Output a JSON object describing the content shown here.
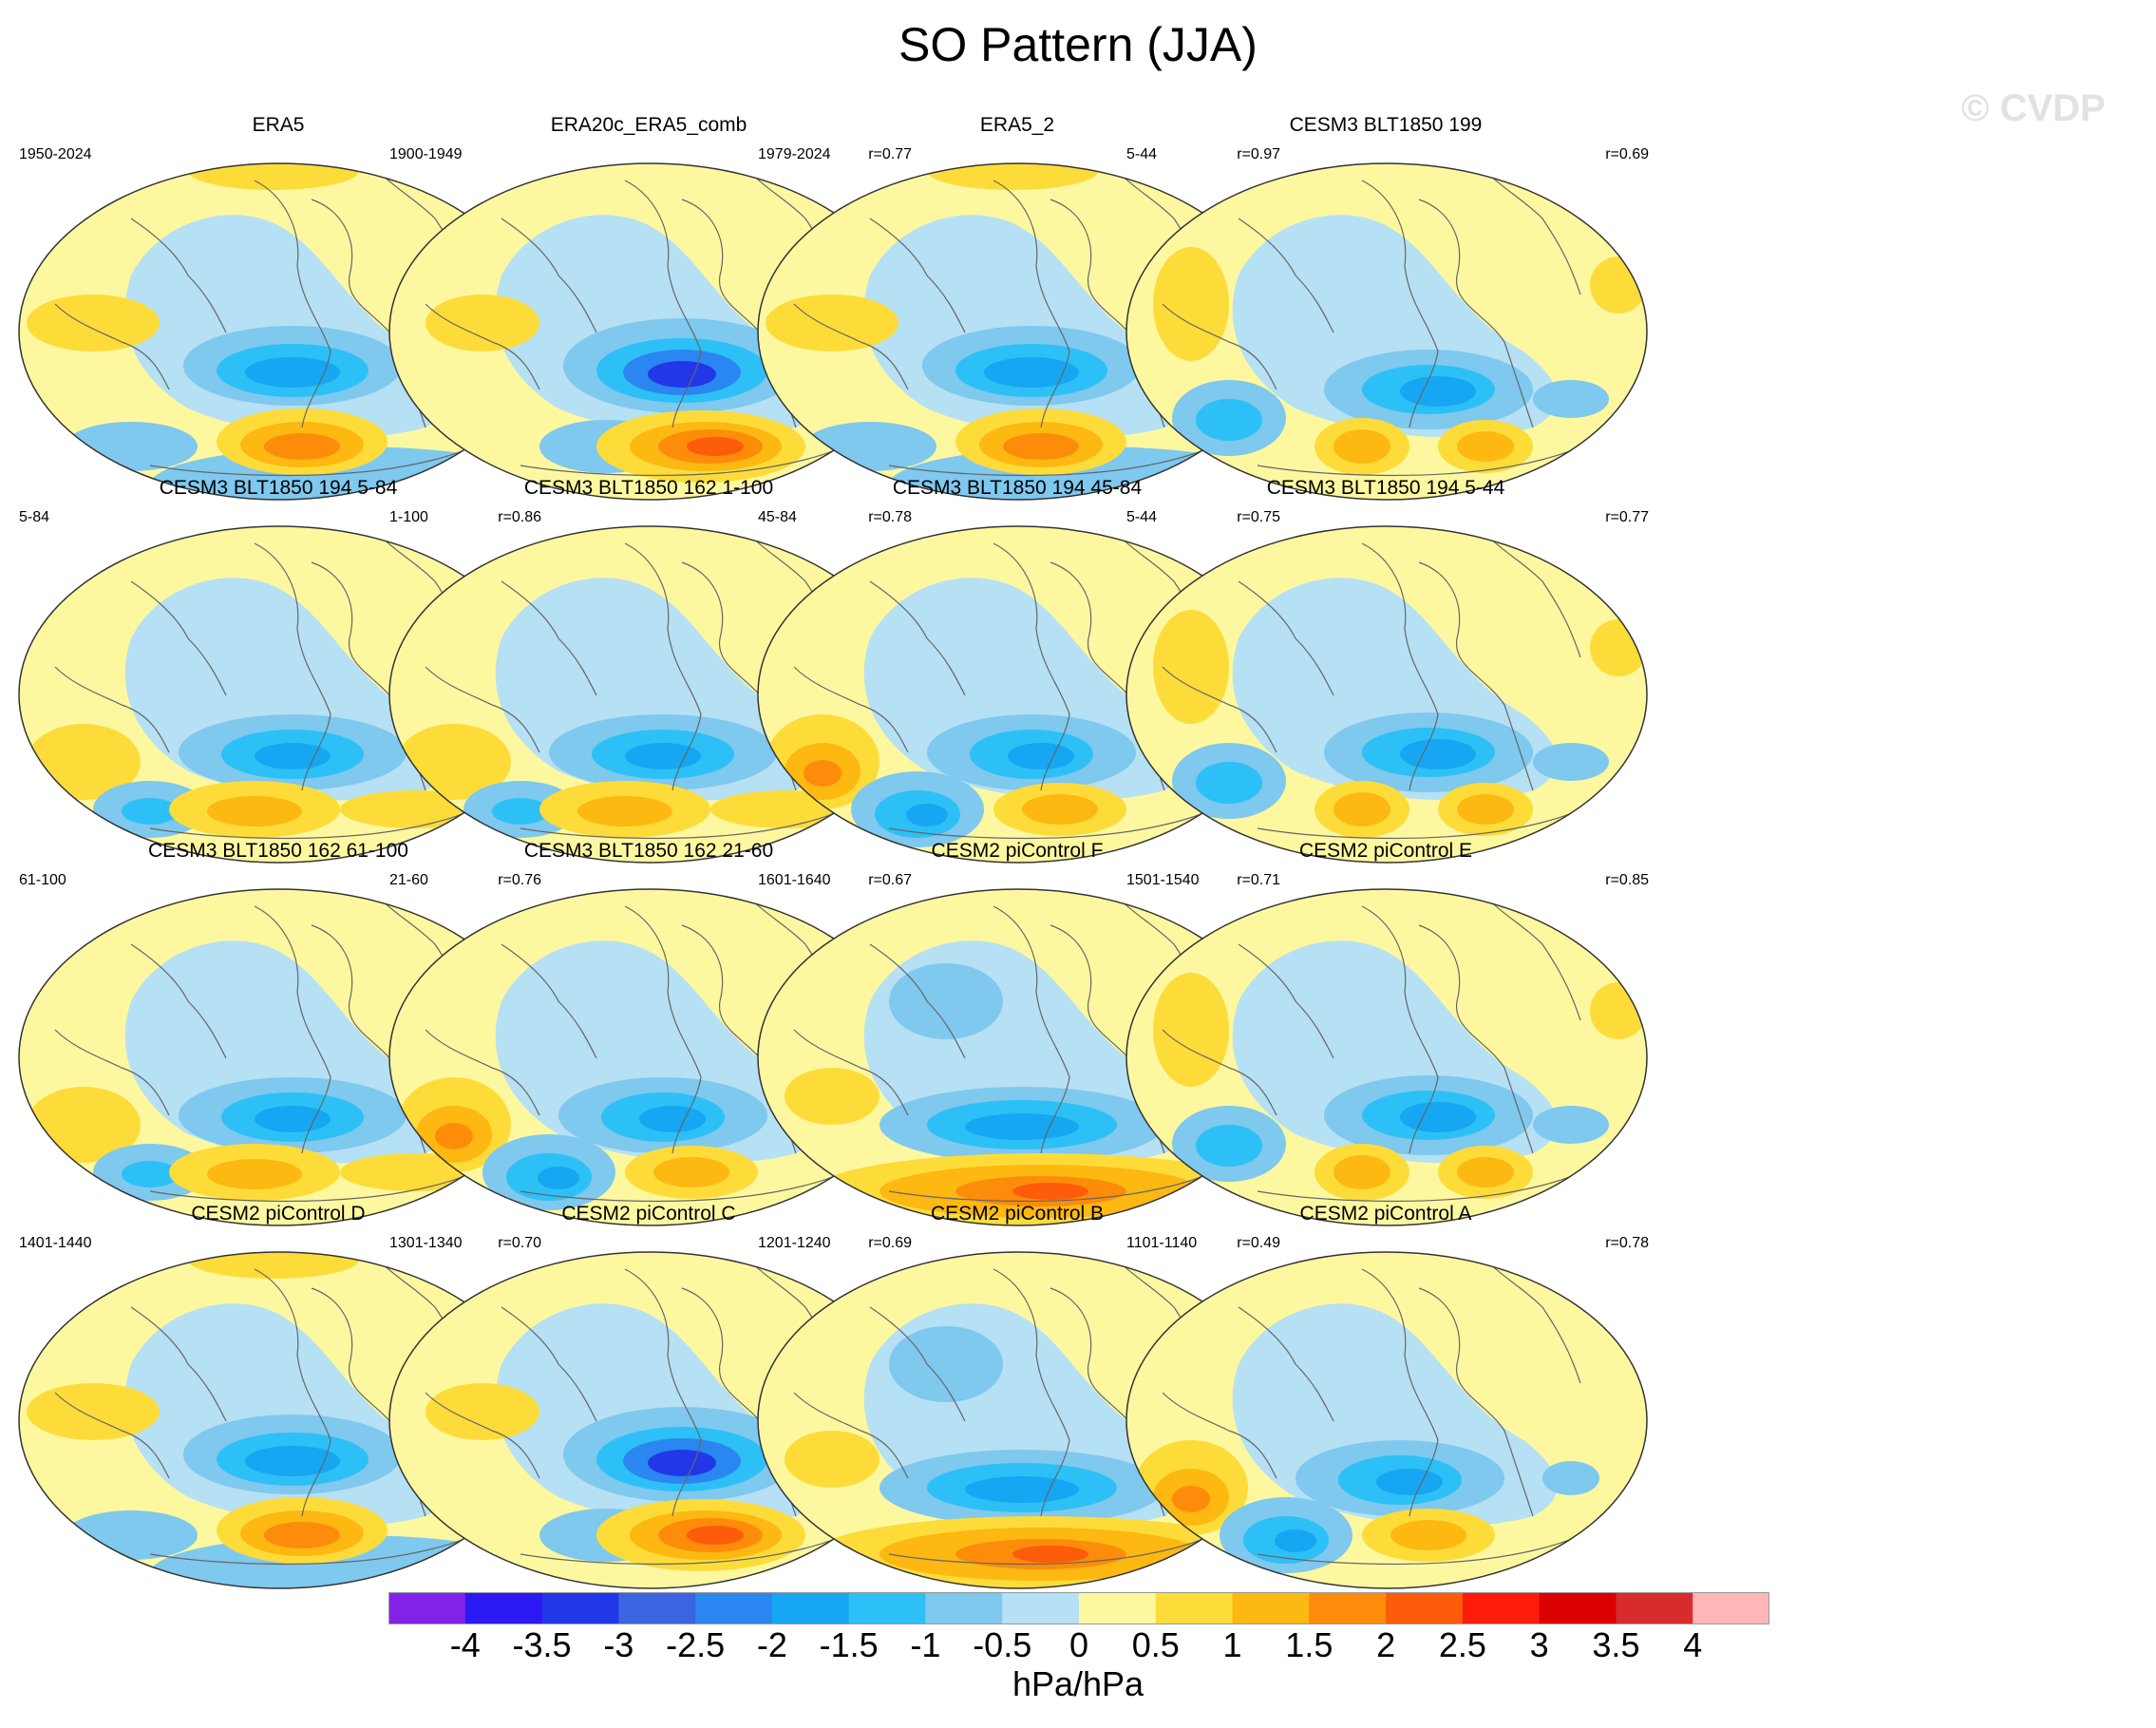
{
  "title": "SO Pattern (JJA)",
  "watermark": "© CVDP",
  "panels": [
    {
      "name": "ERA5",
      "period": "1950-2024",
      "r": "",
      "style": 0
    },
    {
      "name": "ERA20c_ERA5_comb",
      "period": "1900-1949",
      "r": "r=0.77",
      "style": 1
    },
    {
      "name": "ERA5_2",
      "period": "1979-2024",
      "r": "r=0.97",
      "style": 0
    },
    {
      "name": "CESM3 BLT1850 199",
      "period": "5-44",
      "r": "r=0.69",
      "style": 2
    },
    {
      "name": "CESM3 BLT1850 194 5-84",
      "period": "5-84",
      "r": "r=0.86",
      "style": 3
    },
    {
      "name": "CESM3 BLT1850 162 1-100",
      "period": "1-100",
      "r": "r=0.78",
      "style": 3
    },
    {
      "name": "CESM3 BLT1850 194 45-84",
      "period": "45-84",
      "r": "r=0.75",
      "style": 4
    },
    {
      "name": "CESM3 BLT1850 194 5-44",
      "period": "5-44",
      "r": "r=0.77",
      "style": 2
    },
    {
      "name": "CESM3 BLT1850 162 61-100",
      "period": "61-100",
      "r": "r=0.76",
      "style": 3
    },
    {
      "name": "CESM3 BLT1850 162 21-60",
      "period": "21-60",
      "r": "r=0.67",
      "style": 4
    },
    {
      "name": "CESM2 piControl F",
      "period": "1601-1640",
      "r": "r=0.71",
      "style": 5
    },
    {
      "name": "CESM2 piControl E",
      "period": "1501-1540",
      "r": "r=0.85",
      "style": 2
    },
    {
      "name": "CESM2 piControl D",
      "period": "1401-1440",
      "r": "r=0.70",
      "style": 0
    },
    {
      "name": "CESM2 piControl C",
      "period": "1301-1340",
      "r": "r=0.69",
      "style": 1
    },
    {
      "name": "CESM2 piControl B",
      "period": "1201-1240",
      "r": "r=0.49",
      "style": 5
    },
    {
      "name": "CESM2 piControl A",
      "period": "1101-1140",
      "r": "r=0.78",
      "style": 4
    }
  ],
  "colorbar": {
    "levels": [
      "-4",
      "-3.5",
      "-3",
      "-2.5",
      "-2",
      "-1.5",
      "-1",
      "-0.5",
      "0",
      "0.5",
      "1",
      "1.5",
      "2",
      "2.5",
      "3",
      "3.5",
      "4"
    ],
    "colors": [
      "#8222e8",
      "#2b18f2",
      "#2237e8",
      "#3a64e0",
      "#2a86f0",
      "#16a6f2",
      "#2dc0f6",
      "#7fc8ee",
      "#b6e0f4",
      "#fdf8a0",
      "#fddc3a",
      "#fdb812",
      "#fd8c0a",
      "#fd5c0a",
      "#fd1c0a",
      "#dc0000",
      "#d82c2c",
      "#ffb6b6"
    ],
    "units": "hPa/hPa"
  }
}
